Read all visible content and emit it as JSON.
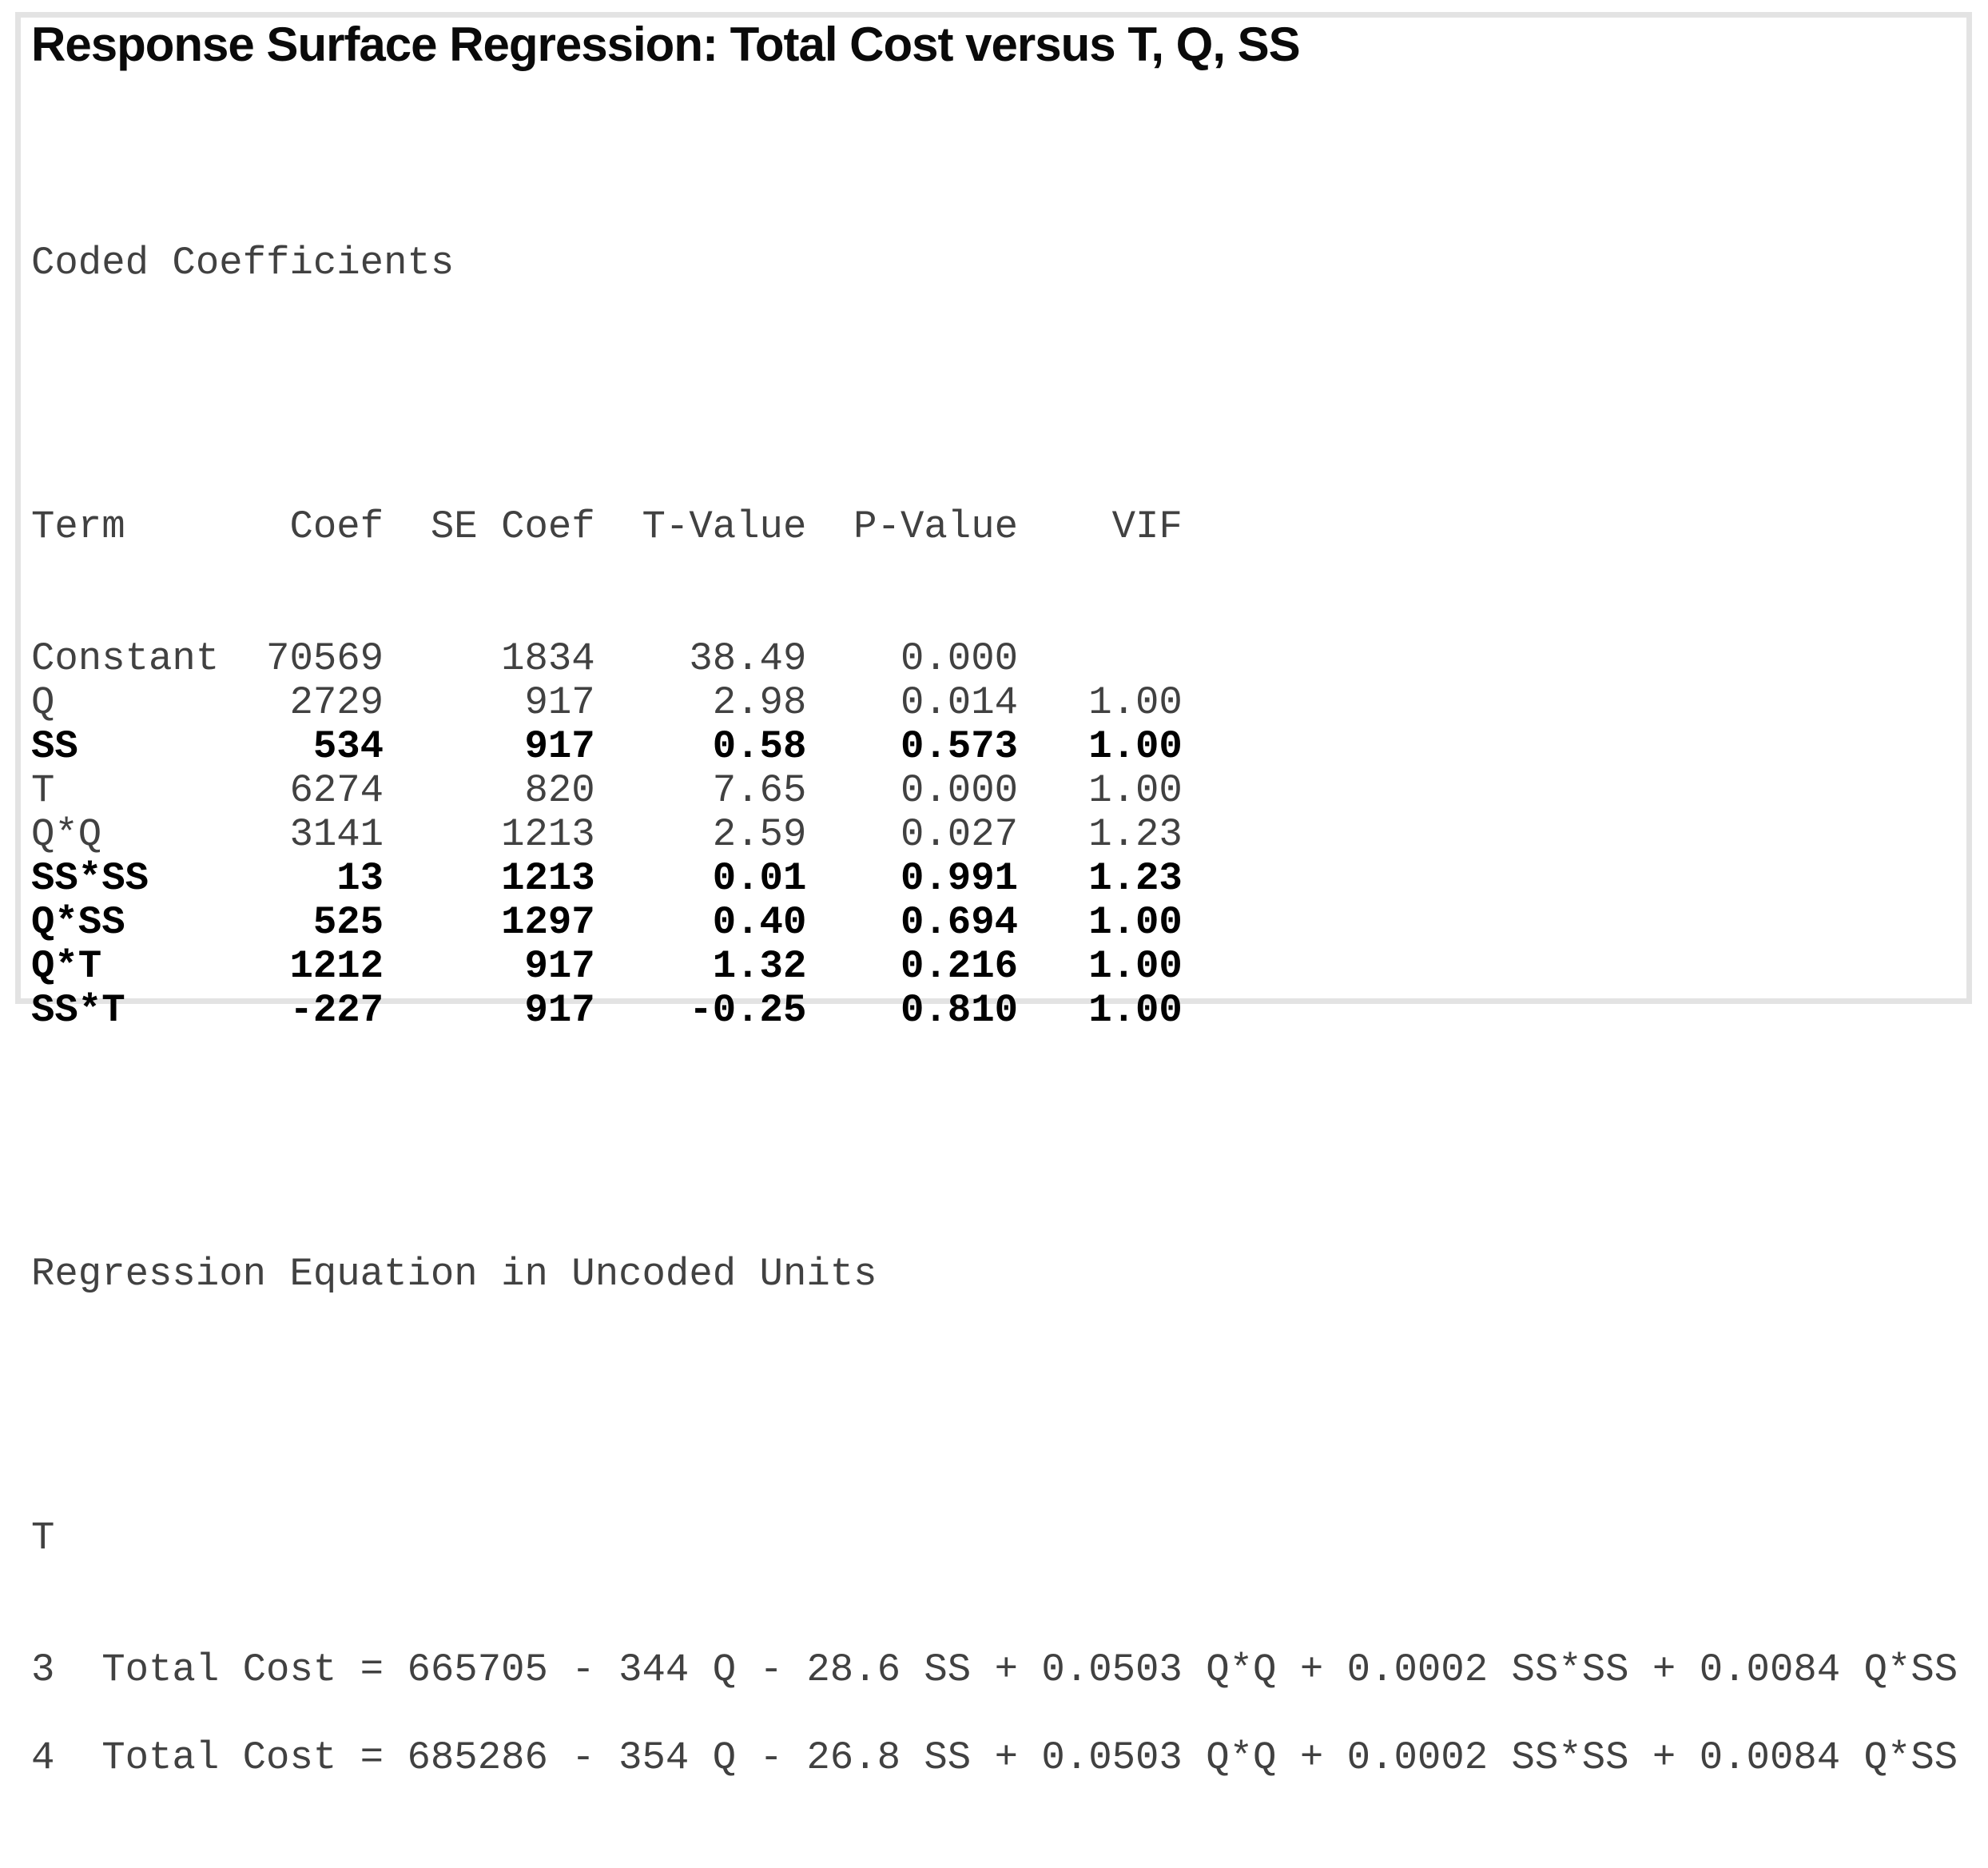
{
  "title": "Response Surface Regression: Total Cost versus T, Q, SS",
  "coded_coefficients": {
    "heading": "Coded Coefficients",
    "columns": [
      "Term",
      "Coef",
      "SE Coef",
      "T-Value",
      "P-Value",
      "VIF"
    ],
    "rows": [
      {
        "term": "Constant",
        "coef": "70569",
        "se_coef": "1834",
        "t_value": "38.49",
        "p_value": "0.000",
        "vif": "",
        "bold": false
      },
      {
        "term": "Q",
        "coef": "2729",
        "se_coef": "917",
        "t_value": "2.98",
        "p_value": "0.014",
        "vif": "1.00",
        "bold": false
      },
      {
        "term": "SS",
        "coef": "534",
        "se_coef": "917",
        "t_value": "0.58",
        "p_value": "0.573",
        "vif": "1.00",
        "bold": true
      },
      {
        "term": "T",
        "coef": "6274",
        "se_coef": "820",
        "t_value": "7.65",
        "p_value": "0.000",
        "vif": "1.00",
        "bold": false
      },
      {
        "term": "Q*Q",
        "coef": "3141",
        "se_coef": "1213",
        "t_value": "2.59",
        "p_value": "0.027",
        "vif": "1.23",
        "bold": false
      },
      {
        "term": "SS*SS",
        "coef": "13",
        "se_coef": "1213",
        "t_value": "0.01",
        "p_value": "0.991",
        "vif": "1.23",
        "bold": true
      },
      {
        "term": "Q*SS",
        "coef": "525",
        "se_coef": "1297",
        "t_value": "0.40",
        "p_value": "0.694",
        "vif": "1.00",
        "bold": true
      },
      {
        "term": "Q*T",
        "coef": "1212",
        "se_coef": "917",
        "t_value": "1.32",
        "p_value": "0.216",
        "vif": "1.00",
        "bold": true
      },
      {
        "term": "SS*T",
        "coef": "-227",
        "se_coef": "917",
        "t_value": "-0.25",
        "p_value": "0.810",
        "vif": "1.00",
        "bold": true
      }
    ]
  },
  "regression_equation": {
    "heading": "Regression Equation in Uncoded Units",
    "group_label": "T",
    "equations": [
      {
        "level": "3",
        "equation": "Total Cost = 665705 - 344 Q - 28.6 SS + 0.0503 Q*Q + 0.0002 SS*SS + 0.0084 Q*SS"
      },
      {
        "level": "4",
        "equation": "Total Cost = 685286 - 354 Q - 26.8 SS + 0.0503 Q*Q + 0.0002 SS*SS + 0.0084 Q*SS"
      }
    ]
  },
  "colors": {
    "regular_text": "#414141",
    "bold_text": "#000000",
    "title_text": "#0a0a0a",
    "frame_border": "#e3e3e3",
    "background": "#ffffff"
  }
}
